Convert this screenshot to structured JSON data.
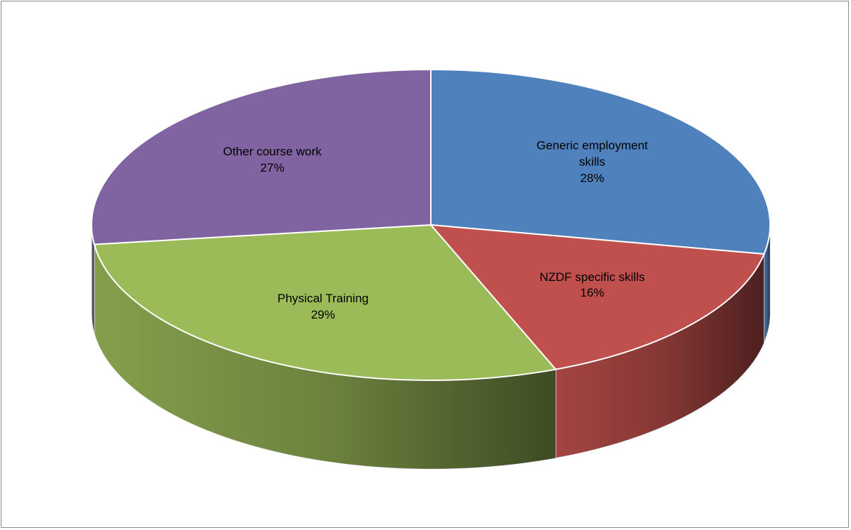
{
  "chart_data": {
    "type": "pie3d",
    "categories": [
      "Generic employment skills",
      "NZDF specific skills",
      "Physical Training",
      "Other course work"
    ],
    "values": [
      28,
      16,
      29,
      27
    ],
    "value_labels": [
      "28%",
      "16%",
      "29%",
      "27%"
    ],
    "colors": [
      "#4f81bd",
      "#c0504d",
      "#9bbb59",
      "#8064a2"
    ]
  }
}
